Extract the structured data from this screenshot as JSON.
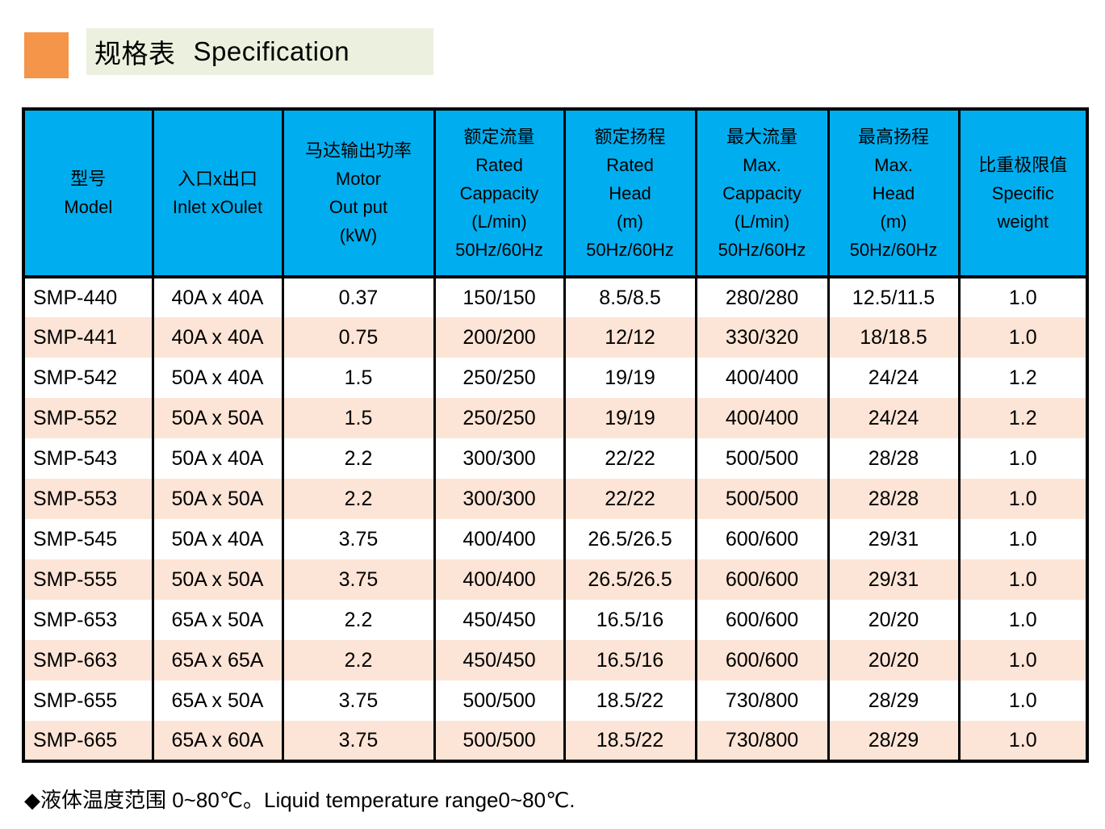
{
  "page": {
    "title_zh": "规格表",
    "title_en": "Specification",
    "footer_note": "◆液体温度范围 0~80℃。Liquid temperature range0~80℃."
  },
  "colors": {
    "header_blue": "#00AEEF",
    "row_peach": "#FCE4D6",
    "row_white": "#FFFFFF",
    "accent_orange": "#F5954A",
    "title_bg_green": "#EBF1DE",
    "border_black": "#000000"
  },
  "table": {
    "columns": [
      {
        "id": "model",
        "lines": [
          "型号",
          "Model"
        ]
      },
      {
        "id": "inlet-outlet",
        "lines": [
          "入口x出口",
          "Inlet xOulet"
        ]
      },
      {
        "id": "motor-output",
        "lines": [
          "马达输出功率",
          "Motor",
          "Out put",
          "(kW)"
        ]
      },
      {
        "id": "rated-capacity",
        "lines": [
          "额定流量",
          "Rated",
          "Cappacity",
          "(L/min)",
          "50Hz/60Hz"
        ]
      },
      {
        "id": "rated-head",
        "lines": [
          "额定扬程",
          "Rated",
          "Head",
          "(m)",
          "50Hz/60Hz"
        ]
      },
      {
        "id": "max-capacity",
        "lines": [
          "最大流量",
          "Max.",
          "Cappacity",
          "(L/min)",
          "50Hz/60Hz"
        ]
      },
      {
        "id": "max-head",
        "lines": [
          "最高扬程",
          "Max.",
          "Head",
          "(m)",
          "50Hz/60Hz"
        ]
      },
      {
        "id": "specific-weight",
        "lines": [
          "比重极限值",
          "Specific",
          "weight"
        ]
      }
    ],
    "rows": [
      [
        "SMP-440",
        "40A x 40A",
        "0.37",
        "150/150",
        "8.5/8.5",
        "280/280",
        "12.5/11.5",
        "1.0"
      ],
      [
        "SMP-441",
        "40A x 40A",
        "0.75",
        "200/200",
        "12/12",
        "330/320",
        "18/18.5",
        "1.0"
      ],
      [
        "SMP-542",
        "50A x 40A",
        "1.5",
        "250/250",
        "19/19",
        "400/400",
        "24/24",
        "1.2"
      ],
      [
        "SMP-552",
        "50A x 50A",
        "1.5",
        "250/250",
        "19/19",
        "400/400",
        "24/24",
        "1.2"
      ],
      [
        "SMP-543",
        "50A x 40A",
        "2.2",
        "300/300",
        "22/22",
        "500/500",
        "28/28",
        "1.0"
      ],
      [
        "SMP-553",
        "50A x 50A",
        "2.2",
        "300/300",
        "22/22",
        "500/500",
        "28/28",
        "1.0"
      ],
      [
        "SMP-545",
        "50A x 40A",
        "3.75",
        "400/400",
        "26.5/26.5",
        "600/600",
        "29/31",
        "1.0"
      ],
      [
        "SMP-555",
        "50A x 50A",
        "3.75",
        "400/400",
        "26.5/26.5",
        "600/600",
        "29/31",
        "1.0"
      ],
      [
        "SMP-653",
        "65A x 50A",
        "2.2",
        "450/450",
        "16.5/16",
        "600/600",
        "20/20",
        "1.0"
      ],
      [
        "SMP-663",
        "65A x 65A",
        "2.2",
        "450/450",
        "16.5/16",
        "600/600",
        "20/20",
        "1.0"
      ],
      [
        "SMP-655",
        "65A x 50A",
        "3.75",
        "500/500",
        "18.5/22",
        "730/800",
        "28/29",
        "1.0"
      ],
      [
        "SMP-665",
        "65A x 60A",
        "3.75",
        "500/500",
        "18.5/22",
        "730/800",
        "28/29",
        "1.0"
      ]
    ]
  }
}
